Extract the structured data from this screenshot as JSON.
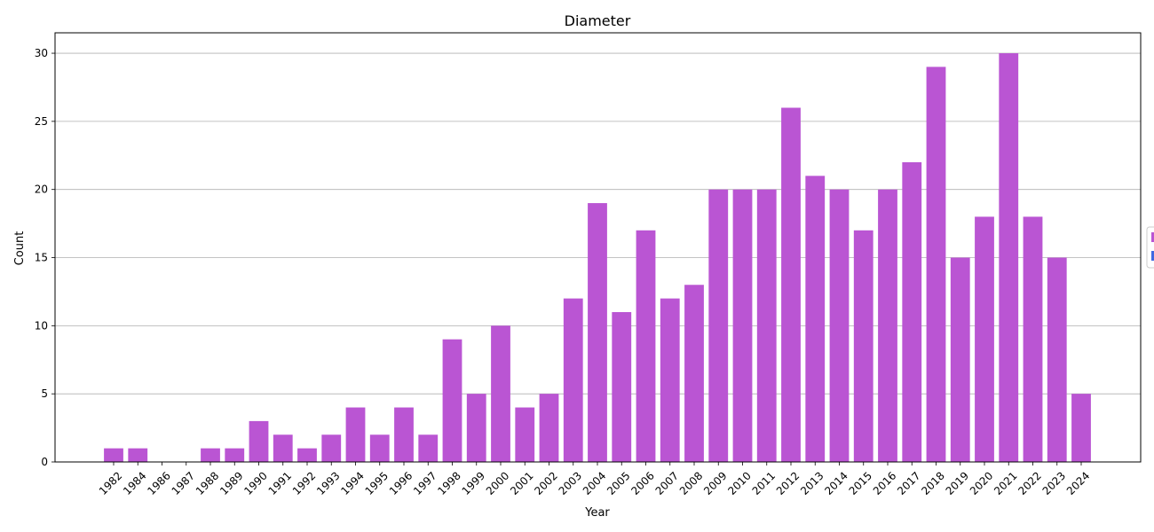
{
  "chart_data": {
    "type": "bar",
    "title": "Diameter",
    "xlabel": "Year",
    "ylabel": "Count",
    "ylim": [
      0,
      31.5
    ],
    "yticks": [
      0,
      5,
      10,
      15,
      20,
      25,
      30
    ],
    "grid": "horizontal",
    "bar_color": "#BA55D3",
    "legend_swatches": [
      "#BA55D3",
      "#4169E1"
    ],
    "legend_placement": "right (clipped)",
    "categories": [
      "1982",
      "1984",
      "1986",
      "1987",
      "1988",
      "1989",
      "1990",
      "1991",
      "1992",
      "1993",
      "1994",
      "1995",
      "1996",
      "1997",
      "1998",
      "1999",
      "2000",
      "2001",
      "2002",
      "2003",
      "2004",
      "2005",
      "2006",
      "2007",
      "2008",
      "2009",
      "2010",
      "2011",
      "2012",
      "2013",
      "2014",
      "2015",
      "2016",
      "2017",
      "2018",
      "2019",
      "2020",
      "2021",
      "2022",
      "2023",
      "2024"
    ],
    "values": [
      1,
      1,
      0,
      0,
      1,
      1,
      3,
      2,
      1,
      2,
      4,
      2,
      4,
      2,
      9,
      5,
      10,
      4,
      5,
      12,
      19,
      11,
      17,
      12,
      13,
      20,
      20,
      20,
      26,
      21,
      20,
      17,
      20,
      22,
      29,
      15,
      18,
      30,
      18,
      15,
      5
    ]
  }
}
